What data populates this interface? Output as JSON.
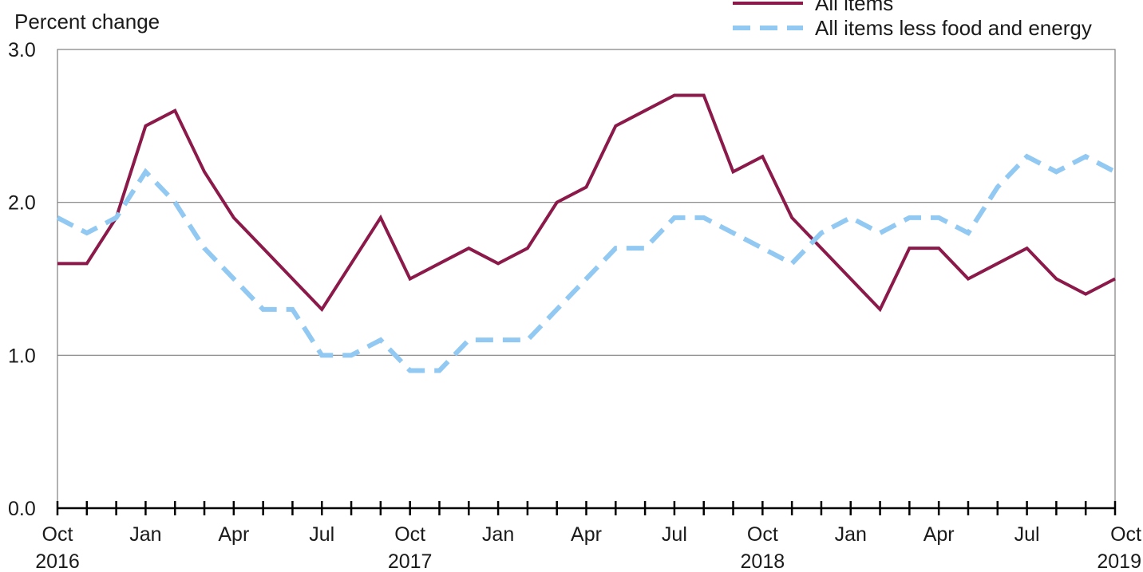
{
  "chart_data": {
    "type": "line",
    "title": "",
    "ylabel": "Percent change",
    "xlabel": "",
    "ylim": [
      0,
      3
    ],
    "yticks": [
      "0.0",
      "1.0",
      "2.0",
      "3.0"
    ],
    "grid": "horizontal",
    "legend_position": "top-right",
    "x": [
      "Oct 2016",
      "Nov 2016",
      "Dec 2016",
      "Jan 2017",
      "Feb 2017",
      "Mar 2017",
      "Apr 2017",
      "May 2017",
      "Jun 2017",
      "Jul 2017",
      "Aug 2017",
      "Sep 2017",
      "Oct 2017",
      "Nov 2017",
      "Dec 2017",
      "Jan 2018",
      "Feb 2018",
      "Mar 2018",
      "Apr 2018",
      "May 2018",
      "Jun 2018",
      "Jul 2018",
      "Aug 2018",
      "Sep 2018",
      "Oct 2018",
      "Nov 2018",
      "Dec 2018",
      "Jan 2019",
      "Feb 2019",
      "Mar 2019",
      "Apr 2019",
      "May 2019",
      "Jun 2019",
      "Jul 2019",
      "Aug 2019",
      "Sep 2019",
      "Oct 2019"
    ],
    "x_tick_labels": [
      {
        "index": 0,
        "month": "Oct",
        "year": "2016"
      },
      {
        "index": 3,
        "month": "Jan",
        "year": ""
      },
      {
        "index": 6,
        "month": "Apr",
        "year": ""
      },
      {
        "index": 9,
        "month": "Jul",
        "year": ""
      },
      {
        "index": 12,
        "month": "Oct",
        "year": "2017"
      },
      {
        "index": 15,
        "month": "Jan",
        "year": ""
      },
      {
        "index": 18,
        "month": "Apr",
        "year": ""
      },
      {
        "index": 21,
        "month": "Jul",
        "year": ""
      },
      {
        "index": 24,
        "month": "Oct",
        "year": "2018"
      },
      {
        "index": 27,
        "month": "Jan",
        "year": ""
      },
      {
        "index": 30,
        "month": "Apr",
        "year": ""
      },
      {
        "index": 33,
        "month": "Jul",
        "year": ""
      },
      {
        "index": 36,
        "month": "Oct",
        "year": "2019"
      }
    ],
    "series": [
      {
        "name": "All items",
        "color": "#8b1a4a",
        "style": "solid",
        "values": [
          1.6,
          1.6,
          1.9,
          2.5,
          2.6,
          2.2,
          1.9,
          1.7,
          1.5,
          1.3,
          1.6,
          1.9,
          1.5,
          1.6,
          1.7,
          1.6,
          1.7,
          2.0,
          2.1,
          2.5,
          2.6,
          2.7,
          2.7,
          2.2,
          2.3,
          1.9,
          1.7,
          1.5,
          1.3,
          1.7,
          1.7,
          1.5,
          1.6,
          1.7,
          1.5,
          1.4,
          1.5
        ]
      },
      {
        "name": "All items less food and energy",
        "color": "#92c9f2",
        "style": "dashed",
        "values": [
          1.9,
          1.8,
          1.9,
          2.2,
          2.0,
          1.7,
          1.5,
          1.3,
          1.3,
          1.0,
          1.0,
          1.1,
          0.9,
          0.9,
          1.1,
          1.1,
          1.1,
          1.3,
          1.5,
          1.7,
          1.7,
          1.9,
          1.9,
          1.8,
          1.7,
          1.6,
          1.8,
          1.9,
          1.8,
          1.9,
          1.9,
          1.8,
          2.1,
          2.3,
          2.2,
          2.3,
          2.2
        ]
      }
    ]
  }
}
